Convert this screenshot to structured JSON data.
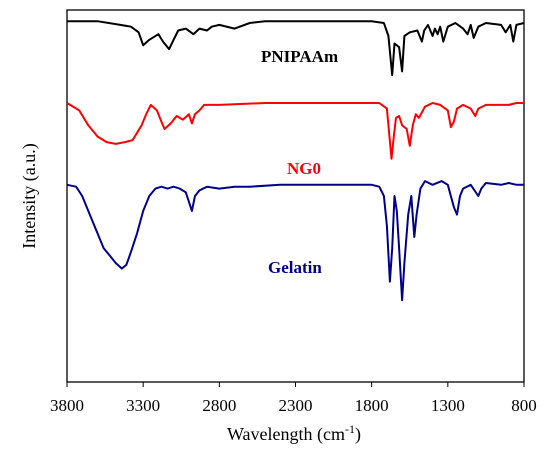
{
  "chart_data": {
    "type": "line",
    "title": "",
    "xlabel": "Wavelength (cm",
    "xlabel_sup": "-1",
    "xlabel_end": ")",
    "ylabel": "Intensity (a.u.)",
    "x_reversed": true,
    "xlim": [
      3800,
      800
    ],
    "ylim": [
      0,
      10
    ],
    "grid": false,
    "legend": "none (series labelled inline)",
    "x_ticks": [
      "3800",
      "3300",
      "2800",
      "2300",
      "1800",
      "1300",
      "800"
    ],
    "series": [
      {
        "name": "PNIPAAm",
        "color": "#000000",
        "points": [
          [
            3800,
            9.7
          ],
          [
            3600,
            9.7
          ],
          [
            3450,
            9.6
          ],
          [
            3380,
            9.55
          ],
          [
            3330,
            9.4
          ],
          [
            3300,
            9.05
          ],
          [
            3260,
            9.2
          ],
          [
            3200,
            9.35
          ],
          [
            3170,
            9.15
          ],
          [
            3130,
            8.95
          ],
          [
            3100,
            9.2
          ],
          [
            3070,
            9.45
          ],
          [
            3020,
            9.5
          ],
          [
            2970,
            9.35
          ],
          [
            2930,
            9.5
          ],
          [
            2880,
            9.45
          ],
          [
            2850,
            9.55
          ],
          [
            2800,
            9.6
          ],
          [
            2700,
            9.5
          ],
          [
            2600,
            9.65
          ],
          [
            2500,
            9.7
          ],
          [
            2300,
            9.7
          ],
          [
            2100,
            9.7
          ],
          [
            1900,
            9.7
          ],
          [
            1800,
            9.7
          ],
          [
            1720,
            9.65
          ],
          [
            1690,
            9.3
          ],
          [
            1665,
            8.25
          ],
          [
            1650,
            9.1
          ],
          [
            1620,
            9.0
          ],
          [
            1600,
            8.35
          ],
          [
            1585,
            9.3
          ],
          [
            1550,
            9.4
          ],
          [
            1500,
            9.45
          ],
          [
            1470,
            9.15
          ],
          [
            1455,
            9.45
          ],
          [
            1430,
            9.6
          ],
          [
            1400,
            9.3
          ],
          [
            1385,
            9.5
          ],
          [
            1367,
            9.35
          ],
          [
            1350,
            9.55
          ],
          [
            1330,
            9.15
          ],
          [
            1300,
            9.55
          ],
          [
            1250,
            9.65
          ],
          [
            1200,
            9.5
          ],
          [
            1170,
            9.35
          ],
          [
            1150,
            9.6
          ],
          [
            1130,
            9.25
          ],
          [
            1100,
            9.55
          ],
          [
            1050,
            9.65
          ],
          [
            950,
            9.6
          ],
          [
            920,
            9.4
          ],
          [
            890,
            9.6
          ],
          [
            870,
            9.15
          ],
          [
            850,
            9.6
          ],
          [
            800,
            9.65
          ]
        ]
      },
      {
        "name": "NG0",
        "color": "#ff0000",
        "points": [
          [
            3800,
            7.5
          ],
          [
            3720,
            7.3
          ],
          [
            3660,
            6.9
          ],
          [
            3600,
            6.6
          ],
          [
            3540,
            6.45
          ],
          [
            3480,
            6.4
          ],
          [
            3420,
            6.45
          ],
          [
            3370,
            6.5
          ],
          [
            3340,
            6.7
          ],
          [
            3310,
            6.9
          ],
          [
            3280,
            7.2
          ],
          [
            3250,
            7.45
          ],
          [
            3210,
            7.3
          ],
          [
            3180,
            7.0
          ],
          [
            3160,
            6.8
          ],
          [
            3120,
            6.95
          ],
          [
            3080,
            7.15
          ],
          [
            3040,
            7.05
          ],
          [
            3000,
            7.2
          ],
          [
            2980,
            6.95
          ],
          [
            2960,
            7.2
          ],
          [
            2930,
            7.3
          ],
          [
            2900,
            7.45
          ],
          [
            2850,
            7.45
          ],
          [
            2800,
            7.45
          ],
          [
            2500,
            7.5
          ],
          [
            2200,
            7.5
          ],
          [
            1900,
            7.5
          ],
          [
            1750,
            7.5
          ],
          [
            1700,
            7.35
          ],
          [
            1670,
            6.0
          ],
          [
            1655,
            6.6
          ],
          [
            1640,
            7.1
          ],
          [
            1620,
            7.15
          ],
          [
            1600,
            6.9
          ],
          [
            1570,
            6.8
          ],
          [
            1550,
            6.35
          ],
          [
            1530,
            6.9
          ],
          [
            1510,
            7.2
          ],
          [
            1490,
            7.1
          ],
          [
            1450,
            7.4
          ],
          [
            1400,
            7.5
          ],
          [
            1350,
            7.45
          ],
          [
            1300,
            7.3
          ],
          [
            1280,
            6.85
          ],
          [
            1260,
            7.0
          ],
          [
            1240,
            7.35
          ],
          [
            1200,
            7.45
          ],
          [
            1150,
            7.35
          ],
          [
            1120,
            7.15
          ],
          [
            1100,
            7.35
          ],
          [
            1050,
            7.45
          ],
          [
            900,
            7.45
          ],
          [
            850,
            7.5
          ],
          [
            800,
            7.5
          ]
        ]
      },
      {
        "name": "Gelatin",
        "color": "#00008b",
        "points": [
          [
            3800,
            5.3
          ],
          [
            3740,
            5.25
          ],
          [
            3700,
            5.0
          ],
          [
            3650,
            4.5
          ],
          [
            3600,
            4.0
          ],
          [
            3560,
            3.6
          ],
          [
            3520,
            3.4
          ],
          [
            3480,
            3.2
          ],
          [
            3440,
            3.05
          ],
          [
            3410,
            3.15
          ],
          [
            3380,
            3.5
          ],
          [
            3340,
            4.0
          ],
          [
            3300,
            4.6
          ],
          [
            3260,
            5.0
          ],
          [
            3220,
            5.2
          ],
          [
            3180,
            5.25
          ],
          [
            3140,
            5.2
          ],
          [
            3100,
            5.25
          ],
          [
            3060,
            5.2
          ],
          [
            3020,
            5.1
          ],
          [
            2980,
            4.6
          ],
          [
            2960,
            5.0
          ],
          [
            2930,
            5.15
          ],
          [
            2880,
            5.25
          ],
          [
            2800,
            5.2
          ],
          [
            2700,
            5.25
          ],
          [
            2600,
            5.25
          ],
          [
            2400,
            5.3
          ],
          [
            2200,
            5.3
          ],
          [
            2000,
            5.3
          ],
          [
            1800,
            5.3
          ],
          [
            1750,
            5.25
          ],
          [
            1720,
            5.0
          ],
          [
            1700,
            4.2
          ],
          [
            1680,
            2.7
          ],
          [
            1665,
            3.6
          ],
          [
            1650,
            5.0
          ],
          [
            1635,
            4.6
          ],
          [
            1620,
            3.6
          ],
          [
            1600,
            2.2
          ],
          [
            1585,
            3.2
          ],
          [
            1560,
            4.5
          ],
          [
            1540,
            5.0
          ],
          [
            1520,
            3.9
          ],
          [
            1505,
            4.5
          ],
          [
            1480,
            5.2
          ],
          [
            1450,
            5.4
          ],
          [
            1400,
            5.3
          ],
          [
            1340,
            5.4
          ],
          [
            1300,
            5.3
          ],
          [
            1260,
            4.7
          ],
          [
            1240,
            4.5
          ],
          [
            1220,
            5.0
          ],
          [
            1200,
            5.2
          ],
          [
            1150,
            5.3
          ],
          [
            1100,
            5.0
          ],
          [
            1080,
            5.2
          ],
          [
            1050,
            5.35
          ],
          [
            950,
            5.3
          ],
          [
            900,
            5.35
          ],
          [
            850,
            5.3
          ],
          [
            800,
            5.3
          ]
        ]
      }
    ]
  }
}
